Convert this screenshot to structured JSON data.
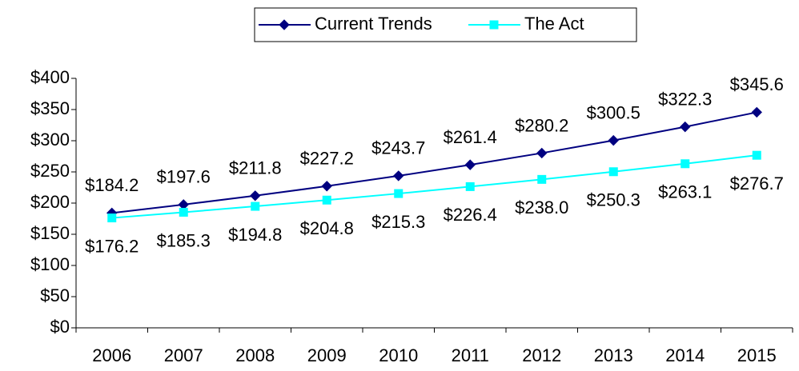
{
  "chart_data": {
    "type": "line",
    "categories": [
      "2006",
      "2007",
      "2008",
      "2009",
      "2010",
      "2011",
      "2012",
      "2013",
      "2014",
      "2015"
    ],
    "series": [
      {
        "name": "Current Trends",
        "color": "#000080",
        "marker": "diamond",
        "values": [
          184.2,
          197.6,
          211.8,
          227.2,
          243.7,
          261.4,
          280.2,
          300.5,
          322.3,
          345.6
        ],
        "value_labels": [
          "$184.2",
          "$197.6",
          "$211.8",
          "$227.2",
          "$243.7",
          "$261.4",
          "$280.2",
          "$300.5",
          "$322.3",
          "$345.6"
        ]
      },
      {
        "name": "The Act",
        "color": "#00ffff",
        "marker": "square",
        "values": [
          176.2,
          185.3,
          194.8,
          204.8,
          215.3,
          226.4,
          238.0,
          250.3,
          263.1,
          276.7
        ],
        "value_labels": [
          "$176.2",
          "$185.3",
          "$194.8",
          "$204.8",
          "$215.3",
          "$226.4",
          "$238.0",
          "$250.3",
          "$263.1",
          "$276.7"
        ]
      }
    ],
    "ylim": [
      0,
      400
    ],
    "yticks": [
      {
        "value": 0,
        "label": "$0"
      },
      {
        "value": 50,
        "label": "$50"
      },
      {
        "value": 100,
        "label": "$100"
      },
      {
        "value": 150,
        "label": "$150"
      },
      {
        "value": 200,
        "label": "$200"
      },
      {
        "value": 250,
        "label": "$250"
      },
      {
        "value": 300,
        "label": "$300"
      },
      {
        "value": 350,
        "label": "$350"
      },
      {
        "value": 400,
        "label": "$400"
      }
    ],
    "grid": false,
    "legend": "top"
  }
}
